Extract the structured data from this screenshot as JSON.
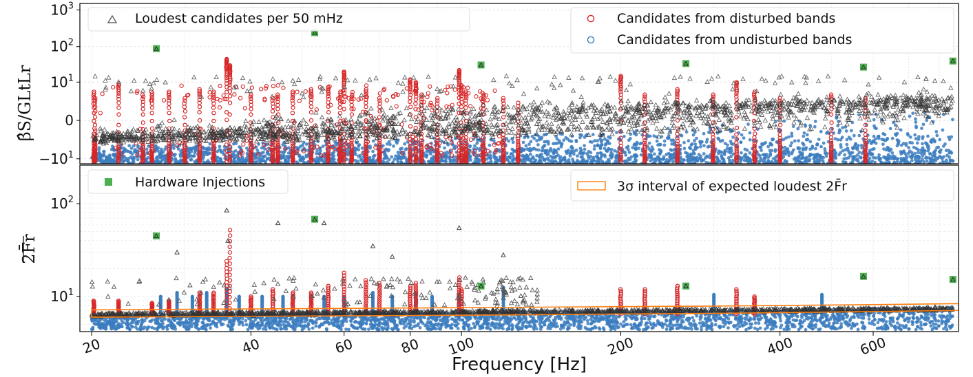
{
  "chart_data": [
    {
      "type": "scatter",
      "panel": "top",
      "ylabel": "β̂S/GLtLr",
      "yscale": "symlog",
      "ylim": [
        -14,
        1500
      ],
      "yticks": [
        {
          "value": -10,
          "label": "−10",
          "sup": "1"
        },
        {
          "value": 0,
          "label": "0",
          "sup": ""
        },
        {
          "value": 10,
          "label": "10",
          "sup": "1"
        },
        {
          "value": 100,
          "label": "10",
          "sup": "2"
        },
        {
          "value": 1000,
          "label": "10",
          "sup": "3"
        }
      ],
      "legend": [
        {
          "label": "Loudest candidates per 50 mHz",
          "placement": "top-left",
          "marker": "triangle",
          "color": "#555555"
        },
        {
          "label": "Candidates from disturbed bands",
          "placement": "top-right",
          "marker": "circle",
          "color": "#d62728"
        },
        {
          "label": "Candidates from undisturbed bands",
          "placement": "top-right",
          "marker": "circle",
          "color": "#3b7dbf"
        }
      ],
      "hardware_injections": [
        {
          "x": 26.5,
          "y": 88
        },
        {
          "x": 52.8,
          "y": 240
        },
        {
          "x": 108.9,
          "y": 31
        },
        {
          "x": 265.6,
          "y": 34
        },
        {
          "x": 575.2,
          "y": 27
        },
        {
          "x": 849.0,
          "y": 40
        }
      ]
    },
    {
      "type": "scatter",
      "panel": "bottom",
      "ylabel": "2F̄r",
      "yscale": "log",
      "ylim": [
        4.2,
        260
      ],
      "yticks": [
        {
          "value": 10,
          "label": "10",
          "sup": "1"
        },
        {
          "value": 100,
          "label": "10",
          "sup": "2"
        }
      ],
      "legend": [
        {
          "label": "Hardware Injections",
          "placement": "top-left",
          "marker": "square",
          "color": "#4caf50"
        },
        {
          "label": "3σ interval of expected loudest 2F̄r",
          "placement": "top-right",
          "marker": "rect-outline",
          "color": "#ff7f0e"
        }
      ],
      "hardware_injections": [
        {
          "x": 26.5,
          "y": 45
        },
        {
          "x": 52.8,
          "y": 68
        },
        {
          "x": 108.9,
          "y": 13
        },
        {
          "x": 265.6,
          "y": 13
        },
        {
          "x": 575.2,
          "y": 16.5
        },
        {
          "x": 849.0,
          "y": 15.3
        }
      ],
      "expected_band": {
        "x": [
          20,
          100,
          300,
          600,
          870
        ],
        "lower": [
          6.0,
          6.3,
          6.6,
          6.9,
          7.1
        ],
        "upper": [
          7.2,
          7.6,
          7.9,
          8.2,
          8.4
        ]
      }
    }
  ],
  "x_axis": {
    "label": "Frequency [Hz]",
    "scale": "log",
    "xlim": [
      19,
      870
    ],
    "ticks": [
      20,
      40,
      60,
      80,
      100,
      200,
      400,
      600
    ],
    "tick_labels": [
      "20",
      "40",
      "60",
      "80",
      "100",
      "200",
      "400",
      "600"
    ]
  },
  "colors": {
    "loudest": "#333333",
    "disturbed": "#d62728",
    "undisturbed": "#3b7dbf",
    "injection": "#4caf50",
    "band": "#ff7f0e"
  }
}
